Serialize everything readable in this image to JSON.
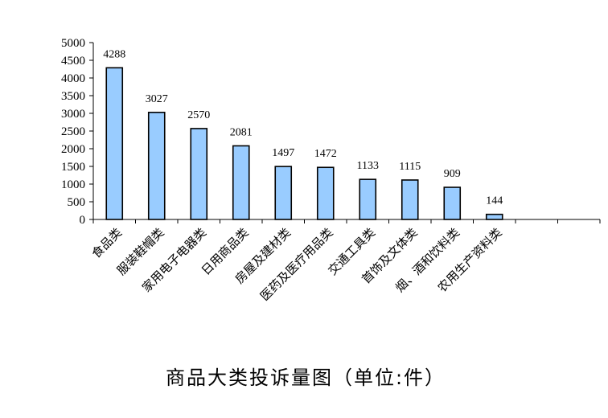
{
  "chart_data": {
    "type": "bar",
    "title": "商品大类投诉量图（单位:件）",
    "xlabel": "",
    "ylabel": "",
    "categories": [
      "食品类",
      "服装鞋帽类",
      "家用电子电器类",
      "日用商品类",
      "房屋及建材类",
      "医药及医疗用品类",
      "交通工具类",
      "首饰及文体类",
      "烟、酒和饮料类",
      "农用生产资料类"
    ],
    "values": [
      4288,
      3027,
      2570,
      2081,
      1497,
      1472,
      1133,
      1115,
      909,
      144
    ],
    "ylim": [
      0,
      5000
    ],
    "yticks": [
      0,
      500,
      1000,
      1500,
      2000,
      2500,
      3000,
      3500,
      4000,
      4500,
      5000
    ],
    "grid": false,
    "legend": "none",
    "colors": {
      "bar_fill": "#99ccff",
      "bar_stroke": "#000000",
      "axis": "#000000"
    }
  }
}
